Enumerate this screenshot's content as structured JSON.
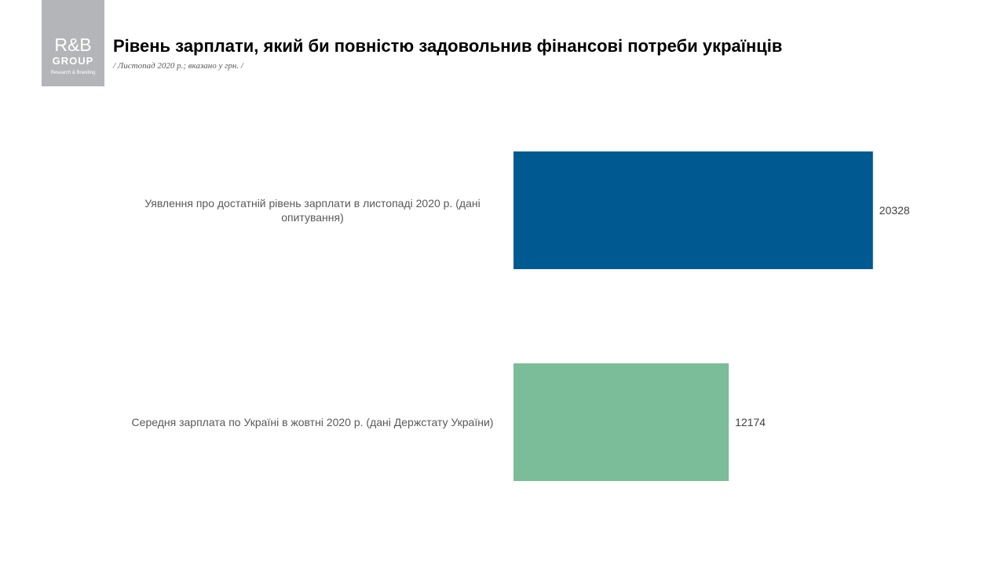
{
  "logo": {
    "main": "R&B",
    "group": "GROUP",
    "sub": "Research & Branding"
  },
  "colors": {
    "series": [
      "#005a92",
      "#7bbd99"
    ],
    "logo_bg": "#b4b5b8"
  },
  "chart_data": {
    "type": "bar",
    "orientation": "horizontal",
    "title": "Рівень зарплати, який би повністю задовольнив фінансові потреби українців",
    "subtitle": "/ Листопад 2020 р.; вказано у грн. /",
    "categories": [
      [
        "Уявлення про достатній рівень зарплати в листопаді 2020 р. (дані",
        "опитування)"
      ],
      [
        "Середня зарплата по Україні в жовтні 2020 р. (дані Держстату України)"
      ]
    ],
    "values": [
      20328,
      12174
    ],
    "value_labels": [
      "20328",
      "12174"
    ],
    "xlim": [
      0,
      25000
    ],
    "grid": false,
    "legend": "none"
  }
}
